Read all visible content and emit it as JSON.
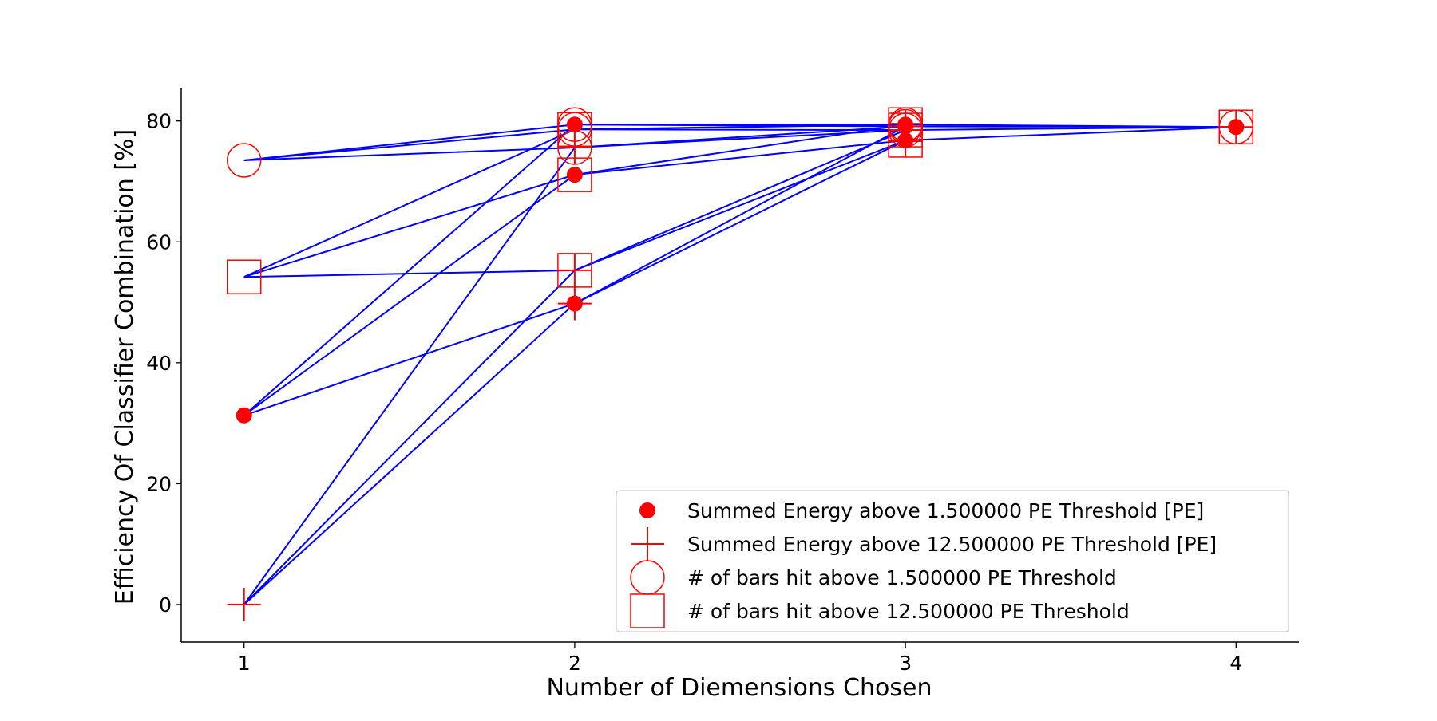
{
  "chart_data": {
    "type": "scatter",
    "title": "",
    "xlabel": "Number of Diemensions Chosen",
    "ylabel": "Efficiency Of Classifier Combination [%]",
    "xlim": [
      0.81,
      4.19
    ],
    "ylim": [
      -6.2,
      85.5
    ],
    "xticks": [
      1,
      2,
      3,
      4
    ],
    "yticks": [
      0,
      20,
      40,
      60,
      80
    ],
    "grid": false,
    "legend_position": "lower-right",
    "line_color": "#0000ff",
    "marker_color": "#ff0000",
    "series": [
      {
        "name": "Summed Energy above 1.500000 PE Threshold [PE]",
        "marker": "filled-circle"
      },
      {
        "name": "Summed Energy above 12.500000 PE Threshold [PE]",
        "marker": "plus"
      },
      {
        "name": "# of bars hit above 1.500000 PE Threshold",
        "marker": "open-circle"
      },
      {
        "name": "# of bars hit above 12.500000 PE Threshold",
        "marker": "open-square"
      }
    ],
    "points": [
      {
        "combo": [
          0
        ],
        "x": 1,
        "y": 31.3
      },
      {
        "combo": [
          1
        ],
        "x": 1,
        "y": 0.0
      },
      {
        "combo": [
          2
        ],
        "x": 1,
        "y": 73.5
      },
      {
        "combo": [
          3
        ],
        "x": 1,
        "y": 54.2
      },
      {
        "combo": [
          0,
          1
        ],
        "x": 2,
        "y": 49.8
      },
      {
        "combo": [
          0,
          2
        ],
        "x": 2,
        "y": 79.4
      },
      {
        "combo": [
          0,
          3
        ],
        "x": 2,
        "y": 71.1
      },
      {
        "combo": [
          1,
          2
        ],
        "x": 2,
        "y": 75.6
      },
      {
        "combo": [
          1,
          3
        ],
        "x": 2,
        "y": 55.3
      },
      {
        "combo": [
          2,
          3
        ],
        "x": 2,
        "y": 78.6
      },
      {
        "combo": [
          0,
          1,
          2
        ],
        "x": 3,
        "y": 79.1
      },
      {
        "combo": [
          0,
          1,
          3
        ],
        "x": 3,
        "y": 76.8
      },
      {
        "combo": [
          0,
          2,
          3
        ],
        "x": 3,
        "y": 79.4
      },
      {
        "combo": [
          1,
          2,
          3
        ],
        "x": 3,
        "y": 78.5
      },
      {
        "combo": [
          0,
          1,
          2,
          3
        ],
        "x": 4,
        "y": 79.0
      }
    ]
  }
}
